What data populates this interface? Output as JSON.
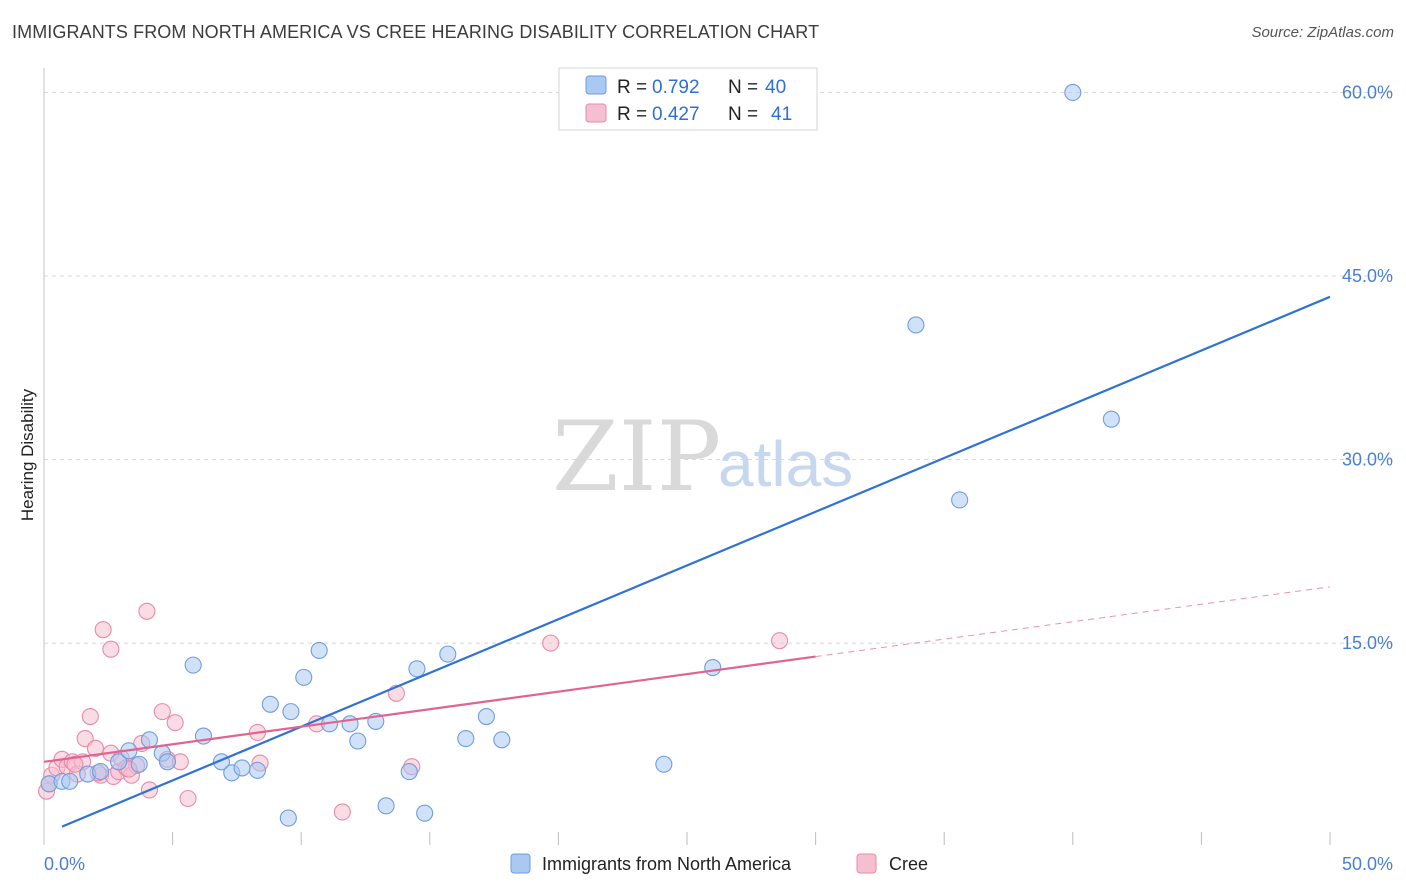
{
  "header": {
    "title": "IMMIGRANTS FROM NORTH AMERICA VS CREE HEARING DISABILITY CORRELATION CHART",
    "source": "Source: ZipAtlas.com"
  },
  "watermark": {
    "zip": "ZIP",
    "atlas": "atlas"
  },
  "colors": {
    "blue_fill": "#a9c8f2",
    "blue_stroke": "#6f9ee0",
    "blue_line": "#2f72d6",
    "pink_fill": "#f6bfd0",
    "pink_stroke": "#e98aaa",
    "pink_line": "#e0648f",
    "grid": "#d8d8d8",
    "axis_text": "#4a7fd4"
  },
  "legend": {
    "series": [
      {
        "r_label": "R =",
        "r_value": "0.792",
        "n_label": "N =",
        "n_value": "40"
      },
      {
        "r_label": "R =",
        "r_value": "0.427",
        "n_label": "N =",
        "n_value": "41"
      }
    ]
  },
  "chart_data": {
    "type": "scatter",
    "title": "IMMIGRANTS FROM NORTH AMERICA VS CREE HEARING DISABILITY CORRELATION CHART",
    "xlabel": "",
    "ylabel": "Hearing Disability",
    "xlim": [
      0,
      50
    ],
    "ylim": [
      -1.5,
      62
    ],
    "x_tick_labels": [
      "0.0%",
      "50.0%"
    ],
    "y_ticks": [
      15,
      30,
      45,
      60
    ],
    "y_tick_labels": [
      "15.0%",
      "30.0%",
      "45.0%",
      "60.0%"
    ],
    "series": [
      {
        "name": "Immigrants from North America",
        "points": [
          [
            0.2,
            3.5
          ],
          [
            0.7,
            3.7
          ],
          [
            1.0,
            3.7
          ],
          [
            1.7,
            4.3
          ],
          [
            2.2,
            4.5
          ],
          [
            2.9,
            5.3
          ],
          [
            3.3,
            6.2
          ],
          [
            3.7,
            5.1
          ],
          [
            4.1,
            7.1
          ],
          [
            4.6,
            6.0
          ],
          [
            4.8,
            5.3
          ],
          [
            5.8,
            13.2
          ],
          [
            6.2,
            7.4
          ],
          [
            6.9,
            5.3
          ],
          [
            7.3,
            4.4
          ],
          [
            7.7,
            4.8
          ],
          [
            8.3,
            4.6
          ],
          [
            8.8,
            10.0
          ],
          [
            9.5,
            0.7
          ],
          [
            9.6,
            9.4
          ],
          [
            10.1,
            12.2
          ],
          [
            10.7,
            14.4
          ],
          [
            11.1,
            8.4
          ],
          [
            11.9,
            8.4
          ],
          [
            12.2,
            7.0
          ],
          [
            12.9,
            8.6
          ],
          [
            13.3,
            1.7
          ],
          [
            14.2,
            4.5
          ],
          [
            14.5,
            12.9
          ],
          [
            14.8,
            1.1
          ],
          [
            15.7,
            14.1
          ],
          [
            16.4,
            7.2
          ],
          [
            17.2,
            9.0
          ],
          [
            17.8,
            7.1
          ],
          [
            24.1,
            5.1
          ],
          [
            26.0,
            13.0
          ],
          [
            33.9,
            41.0
          ],
          [
            35.6,
            26.7
          ],
          [
            40.0,
            60.0
          ],
          [
            41.5,
            33.3
          ]
        ],
        "trendline": {
          "x_start": 0.7,
          "y_start": 0.0,
          "x_end": 50.0,
          "y_end": 43.3
        }
      },
      {
        "name": "Cree",
        "points": [
          [
            0.1,
            2.9
          ],
          [
            0.3,
            4.2
          ],
          [
            0.5,
            4.8
          ],
          [
            0.7,
            5.5
          ],
          [
            0.9,
            4.9
          ],
          [
            1.1,
            5.3
          ],
          [
            1.3,
            4.3
          ],
          [
            1.5,
            5.3
          ],
          [
            1.6,
            7.2
          ],
          [
            1.8,
            9.0
          ],
          [
            2.0,
            6.4
          ],
          [
            2.2,
            4.2
          ],
          [
            2.3,
            16.1
          ],
          [
            2.6,
            14.5
          ],
          [
            2.6,
            6.0
          ],
          [
            2.7,
            4.1
          ],
          [
            2.9,
            4.5
          ],
          [
            3.0,
            5.6
          ],
          [
            3.2,
            4.8
          ],
          [
            3.4,
            4.2
          ],
          [
            3.6,
            5.0
          ],
          [
            3.8,
            6.8
          ],
          [
            4.0,
            17.6
          ],
          [
            4.1,
            3.0
          ],
          [
            4.6,
            9.4
          ],
          [
            4.8,
            5.5
          ],
          [
            5.1,
            8.5
          ],
          [
            5.3,
            5.3
          ],
          [
            5.6,
            2.3
          ],
          [
            8.3,
            7.7
          ],
          [
            8.4,
            5.2
          ],
          [
            10.6,
            8.4
          ],
          [
            11.6,
            1.2
          ],
          [
            13.7,
            10.9
          ],
          [
            14.3,
            4.9
          ],
          [
            19.7,
            15.0
          ],
          [
            28.6,
            15.2
          ],
          [
            0.2,
            3.5
          ],
          [
            1.2,
            5.1
          ],
          [
            3.3,
            4.7
          ],
          [
            2.1,
            4.4
          ]
        ],
        "trendline": {
          "x_start": 0.0,
          "y_start": 5.3,
          "x_end": 30.0,
          "y_end": 13.9
        },
        "trendline_extension": {
          "x_start": 30.0,
          "y_start": 13.9,
          "x_end": 50.0,
          "y_end": 19.6
        }
      }
    ],
    "legend_position": "top-center",
    "grid": true
  },
  "bottom_legend": [
    {
      "label": "Immigrants from North America"
    },
    {
      "label": "Cree"
    }
  ]
}
